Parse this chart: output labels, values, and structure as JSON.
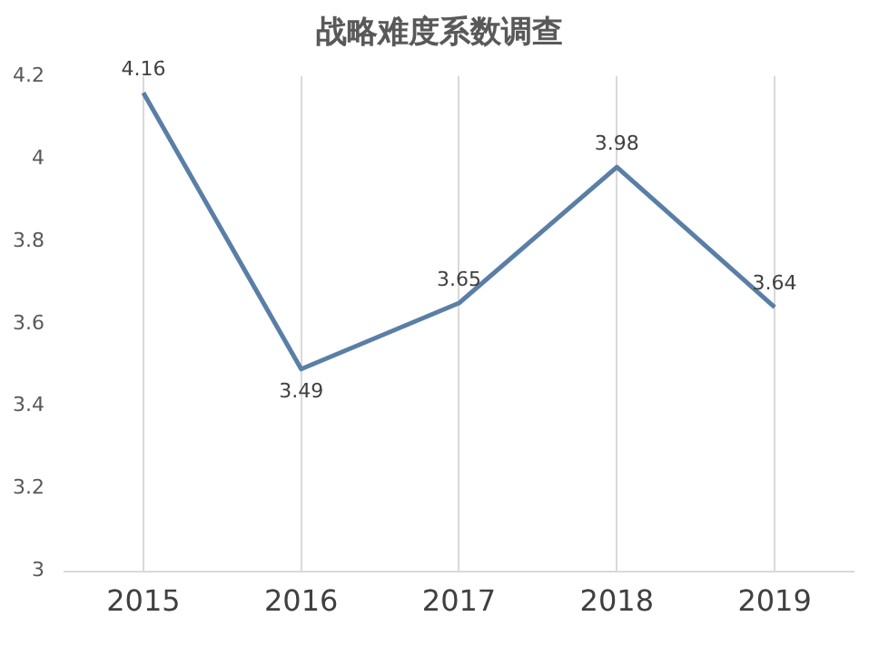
{
  "chart_data": {
    "type": "line",
    "title": "战略难度系数调查",
    "categories": [
      "2015",
      "2016",
      "2017",
      "2018",
      "2019"
    ],
    "series": [
      {
        "color": "#5a7fa6",
        "values": [
          4.16,
          3.49,
          3.65,
          3.98,
          3.64
        ]
      }
    ],
    "ylim": [
      3,
      4.2
    ],
    "yticks": [
      3,
      3.2,
      3.4,
      3.6,
      3.8,
      4,
      4.2
    ],
    "grid": "x",
    "legend": false,
    "marker": "none",
    "line_style": "solid",
    "data_labels": true
  }
}
